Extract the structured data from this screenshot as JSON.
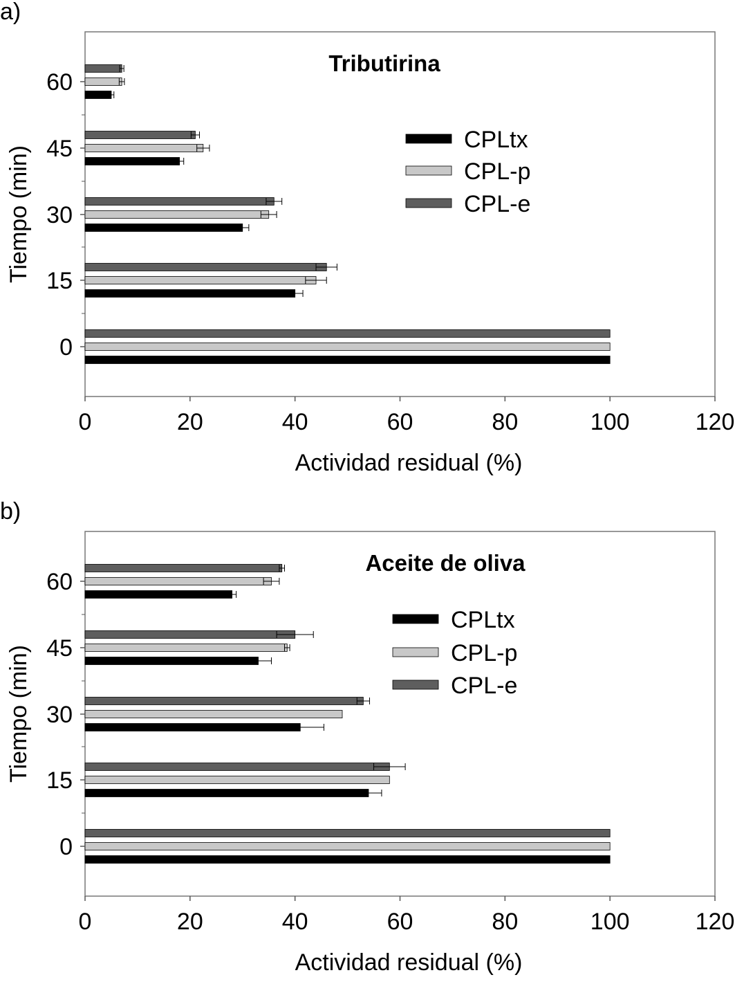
{
  "chart_data": [
    {
      "panel_label": "a)",
      "type": "bar",
      "orientation": "horizontal",
      "title": "Tributirina",
      "xlabel": "Actividad residual (%)",
      "ylabel": "Tiempo (min)",
      "xlim": [
        0,
        120
      ],
      "xticks": [
        "0",
        "20",
        "40",
        "60",
        "80",
        "100",
        "120"
      ],
      "categories": [
        "0",
        "15",
        "30",
        "45",
        "60"
      ],
      "grid": false,
      "legend_position": "right",
      "series": [
        {
          "name": "CPLtx",
          "color": "#000000",
          "values": [
            100,
            40,
            30,
            18,
            5
          ],
          "errors": [
            0,
            1.5,
            1.2,
            0.8,
            0.5
          ]
        },
        {
          "name": "CPL-p",
          "color": "#c8c8c8",
          "values": [
            100,
            44,
            35,
            22.5,
            7
          ],
          "errors": [
            0,
            2,
            1.5,
            1.2,
            0.5
          ]
        },
        {
          "name": "CPL-e",
          "color": "#5e5e5e",
          "values": [
            100,
            46,
            36,
            21,
            7
          ],
          "errors": [
            0,
            2,
            1.5,
            0.8,
            0.4
          ]
        }
      ]
    },
    {
      "panel_label": "b)",
      "type": "bar",
      "orientation": "horizontal",
      "title": "Aceite de oliva",
      "xlabel": "Actividad residual (%)",
      "ylabel": "Tiempo (min)",
      "xlim": [
        0,
        120
      ],
      "xticks": [
        "0",
        "20",
        "40",
        "60",
        "80",
        "100",
        "120"
      ],
      "categories": [
        "0",
        "15",
        "30",
        "45",
        "60"
      ],
      "grid": false,
      "legend_position": "right",
      "series": [
        {
          "name": "CPLtx",
          "color": "#000000",
          "values": [
            100,
            54,
            41,
            33,
            28
          ],
          "errors": [
            0,
            2.5,
            4.5,
            2.5,
            0.8
          ]
        },
        {
          "name": "CPL-p",
          "color": "#c8c8c8",
          "values": [
            100,
            58,
            49,
            38.5,
            35.5
          ],
          "errors": [
            0,
            0,
            0,
            0.5,
            1.5
          ]
        },
        {
          "name": "CPL-e",
          "color": "#5e5e5e",
          "values": [
            100,
            58,
            53,
            40,
            37.5
          ],
          "errors": [
            0,
            3,
            1.2,
            3.5,
            0.5
          ]
        }
      ]
    }
  ]
}
